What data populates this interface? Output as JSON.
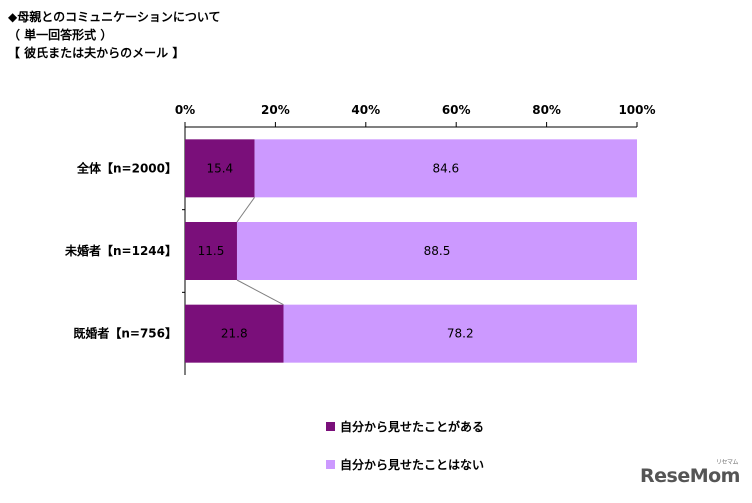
{
  "title_lines": [
    "◆母親とのコミュニケーションについて",
    "（ 単一回答形式 ）",
    "【 彼氏または夫からのメール 】"
  ],
  "logo": {
    "text": "ReseMom",
    "sub": "リセマム"
  },
  "colors": {
    "series1": "#7a0f7a",
    "series2": "#cc99ff"
  },
  "chart_data": {
    "type": "bar",
    "orientation": "horizontal",
    "stacked": "percent",
    "x_ticks": [
      "0%",
      "20%",
      "40%",
      "60%",
      "80%",
      "100%"
    ],
    "xlim": [
      0,
      100
    ],
    "categories": [
      "全体【n=2000】",
      "未婚者【n=1244】",
      "既婚者【n=756】"
    ],
    "series": [
      {
        "name": "自分から見せたことがある",
        "values": [
          15.4,
          11.5,
          21.8
        ]
      },
      {
        "name": "自分から見せたことはない",
        "values": [
          84.6,
          88.5,
          78.2
        ]
      }
    ],
    "legend_position": "bottom"
  }
}
